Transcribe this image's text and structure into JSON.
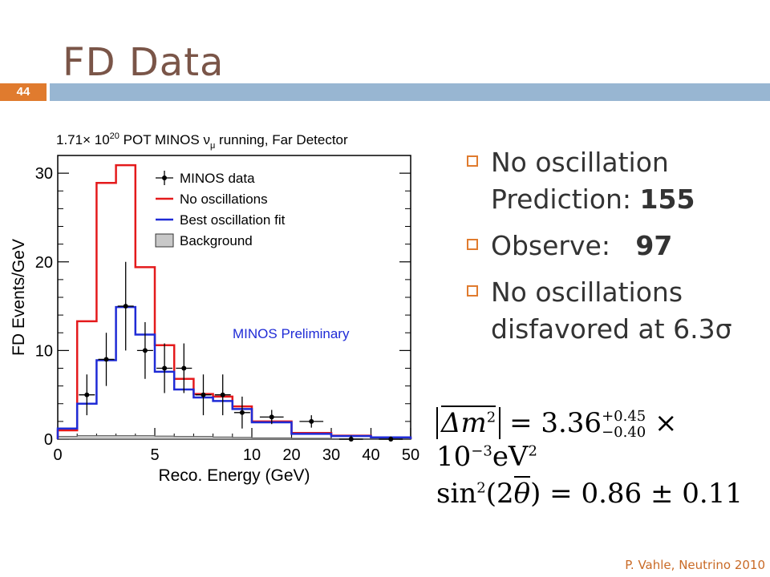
{
  "slide": {
    "title": "FD Data",
    "page_number": "44",
    "footer": "P. Vahle, Neutrino 2010"
  },
  "bullets": [
    {
      "text": "No oscillation Prediction: ",
      "strong": "155"
    },
    {
      "text": "Observe:   ",
      "strong": "97"
    },
    {
      "text": "No oscillations disfavored at 6.3σ",
      "strong": ""
    }
  ],
  "formulas": {
    "dm2": {
      "symbol": "Δm",
      "power": "2",
      "value": "= 3.36",
      "plus": "+0.45",
      "minus": "−0.40",
      "times": "× 10",
      "exp": "−3",
      "unit": "eV",
      "unit_power": "2"
    },
    "sin2": {
      "lhs_pre": "sin",
      "power": "2",
      "arg_open": "(2",
      "theta": "θ",
      "arg_close": ")",
      "rhs": "= 0.86 ± 0.11"
    }
  },
  "chart_data": {
    "type": "histogram",
    "title": "1.71× 10^20 POT MINOS ν̄μ running, Far Detector",
    "title_parts": {
      "pre": "1.71",
      "times": "×",
      "base": " 10",
      "exp": "20",
      "post": " POT MINOS ",
      "nu": "ν",
      "mu": "μ",
      "tail": " running, Far Detector"
    },
    "xlabel": "Reco. Energy (GeV)",
    "ylabel": "FD Events/GeV",
    "annotation": "MINOS Preliminary",
    "xlim": [
      0,
      50
    ],
    "ylim": [
      0,
      32
    ],
    "x_axis_note": "variable-width binning: 0–10 GeV linear, then 10–20, 20–30, 30–40, 40–50",
    "x_ticks": [
      {
        "label": "0",
        "value": 0
      },
      {
        "label": "5",
        "value": 5
      },
      {
        "label": "10",
        "value": 10
      },
      {
        "label": "20",
        "value": 20
      },
      {
        "label": "30",
        "value": 30
      },
      {
        "label": "40",
        "value": 40
      },
      {
        "label": "50",
        "value": 50
      }
    ],
    "y_ticks": [
      0,
      10,
      20,
      30
    ],
    "legend": {
      "placement": "top-left",
      "entries": [
        {
          "label": "MINOS data",
          "kind": "data",
          "color": "#000000"
        },
        {
          "label": "No oscillations",
          "kind": "line",
          "color": "#e41a1c"
        },
        {
          "label": "Best oscillation fit",
          "kind": "line",
          "color": "#1f2bd6"
        },
        {
          "label": "Background",
          "kind": "fill",
          "color": "#c8c8c8"
        }
      ]
    },
    "bin_edges": [
      0,
      1,
      2,
      3,
      4,
      5,
      6,
      7,
      8,
      9,
      10,
      20,
      30,
      40,
      50
    ],
    "series": [
      {
        "name": "No oscillations",
        "color": "#e41a1c",
        "values": [
          1.0,
          13.3,
          28.9,
          30.9,
          19.4,
          10.6,
          6.8,
          5.1,
          4.8,
          3.7,
          2.0,
          0.7,
          0.4,
          0.2
        ]
      },
      {
        "name": "Best oscillation fit",
        "color": "#1f2bd6",
        "values": [
          1.2,
          4.0,
          8.9,
          14.9,
          11.8,
          7.6,
          5.6,
          4.7,
          4.3,
          3.4,
          1.9,
          0.6,
          0.35,
          0.2
        ]
      },
      {
        "name": "Background",
        "color": "#c8c8c8",
        "values": [
          0.3,
          0.4,
          0.4,
          0.4,
          0.4,
          0.35,
          0.3,
          0.3,
          0.25,
          0.2,
          0.15,
          0.1,
          0.05,
          0.05
        ]
      }
    ],
    "data_points": {
      "name": "MINOS data",
      "x": [
        1.5,
        2.5,
        3.5,
        4.5,
        5.5,
        6.5,
        7.5,
        8.5,
        9.5,
        15,
        25,
        35,
        45
      ],
      "y": [
        5.0,
        9.0,
        15.0,
        10.0,
        8.0,
        8.0,
        5.0,
        5.0,
        3.0,
        2.5,
        2.0,
        0.0,
        0.0
      ],
      "err": [
        2.3,
        3.0,
        5.0,
        3.2,
        2.8,
        2.8,
        2.3,
        2.3,
        1.8,
        0.8,
        0.7,
        0.4,
        0.3
      ]
    }
  }
}
